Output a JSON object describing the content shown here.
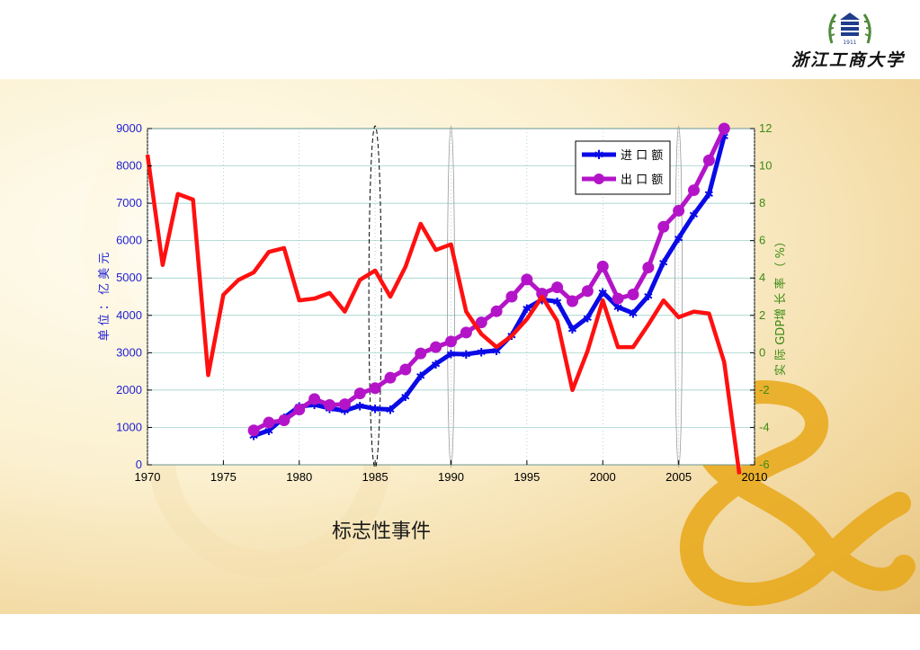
{
  "header": {
    "logo_text": "浙江工商大学",
    "emblem_year": "1911"
  },
  "caption": "标志性事件",
  "colors": {
    "import": "#0a0ae6",
    "export": "#b414c8",
    "gdp": "#ff1010",
    "left_axis": "#1e1ed2",
    "right_axis": "#3c8a14",
    "ampersand": "#e8a818"
  },
  "chart_data": {
    "type": "line",
    "x_ticks": [
      "1970",
      "1975",
      "1980",
      "1985",
      "1990",
      "1995",
      "2000",
      "2005",
      "2010"
    ],
    "xlim": [
      1970,
      2010
    ],
    "y_left": {
      "label": "单 位 ： 亿 美 元",
      "lim": [
        0,
        9000
      ],
      "ticks": [
        "0",
        "1000",
        "2000",
        "3000",
        "4000",
        "5000",
        "6000",
        "7000",
        "8000",
        "9000"
      ]
    },
    "y_right": {
      "label": "实 际 GDP增 长 率 （ %）",
      "lim": [
        -6,
        12
      ],
      "ticks": [
        "-6",
        "-4",
        "-2",
        "0",
        "2",
        "4",
        "6",
        "8",
        "10",
        "12"
      ]
    },
    "grid": true,
    "legend": {
      "position": "top-right",
      "entries": [
        {
          "label": "进 口 额",
          "series": "import"
        },
        {
          "label": "出 口 额",
          "series": "export"
        }
      ]
    },
    "series": [
      {
        "key": "import",
        "name": "进 口 额",
        "axis": "left",
        "marker": "star",
        "x": [
          1977,
          1978,
          1979,
          1980,
          1981,
          1982,
          1983,
          1984,
          1985,
          1986,
          1987,
          1988,
          1989,
          1990,
          1991,
          1992,
          1993,
          1994,
          1995,
          1996,
          1997,
          1998,
          1999,
          2000,
          2001,
          2002,
          2003,
          2004,
          2005,
          2006,
          2007,
          2008
        ],
        "y": [
          780,
          920,
          1260,
          1560,
          1610,
          1510,
          1450,
          1580,
          1500,
          1480,
          1830,
          2380,
          2700,
          2970,
          2960,
          3020,
          3060,
          3470,
          4190,
          4420,
          4370,
          3630,
          3940,
          4620,
          4220,
          4060,
          4520,
          5420,
          6070,
          6700,
          7250,
          8800
        ]
      },
      {
        "key": "export",
        "name": "出 口 额",
        "axis": "left",
        "marker": "circle",
        "x": [
          1977,
          1978,
          1979,
          1980,
          1981,
          1982,
          1983,
          1984,
          1985,
          1986,
          1987,
          1988,
          1989,
          1990,
          1991,
          1992,
          1993,
          1994,
          1995,
          1996,
          1997,
          1998,
          1999,
          2000,
          2001,
          2002,
          2003,
          2004,
          2005,
          2006,
          2007,
          2008
        ],
        "y": [
          920,
          1130,
          1190,
          1480,
          1760,
          1600,
          1620,
          1910,
          2050,
          2330,
          2550,
          2980,
          3150,
          3300,
          3540,
          3810,
          4110,
          4500,
          4960,
          4580,
          4750,
          4380,
          4650,
          5310,
          4450,
          4560,
          5280,
          6370,
          6800,
          7350,
          8150,
          9000
        ]
      },
      {
        "key": "gdp",
        "name": "",
        "axis": "right",
        "marker": "none",
        "x": [
          1970,
          1971,
          1972,
          1973,
          1974,
          1975,
          1976,
          1977,
          1978,
          1979,
          1980,
          1981,
          1982,
          1983,
          1984,
          1985,
          1986,
          1987,
          1988,
          1989,
          1990,
          1991,
          1992,
          1993,
          1994,
          1995,
          1996,
          1997,
          1998,
          1999,
          2000,
          2001,
          2002,
          2003,
          2004,
          2005,
          2006,
          2007,
          2008,
          2009
        ],
        "y": [
          10.6,
          4.7,
          8.5,
          8.2,
          -1.2,
          3.1,
          3.9,
          4.3,
          5.4,
          5.6,
          2.8,
          2.9,
          3.2,
          2.2,
          3.9,
          4.4,
          3.0,
          4.6,
          6.9,
          5.5,
          5.8,
          2.2,
          1.0,
          0.3,
          0.9,
          1.8,
          3.0,
          1.7,
          -2.0,
          0.1,
          2.8,
          0.3,
          0.3,
          1.5,
          2.8,
          1.9,
          2.2,
          2.1,
          -0.5,
          -6.5
        ]
      }
    ],
    "annotations": [
      {
        "type": "dashed-ellipse",
        "x": 1985
      },
      {
        "type": "thin-ellipse",
        "x": 1990
      },
      {
        "type": "thin-ellipse",
        "x": 2005
      }
    ]
  }
}
